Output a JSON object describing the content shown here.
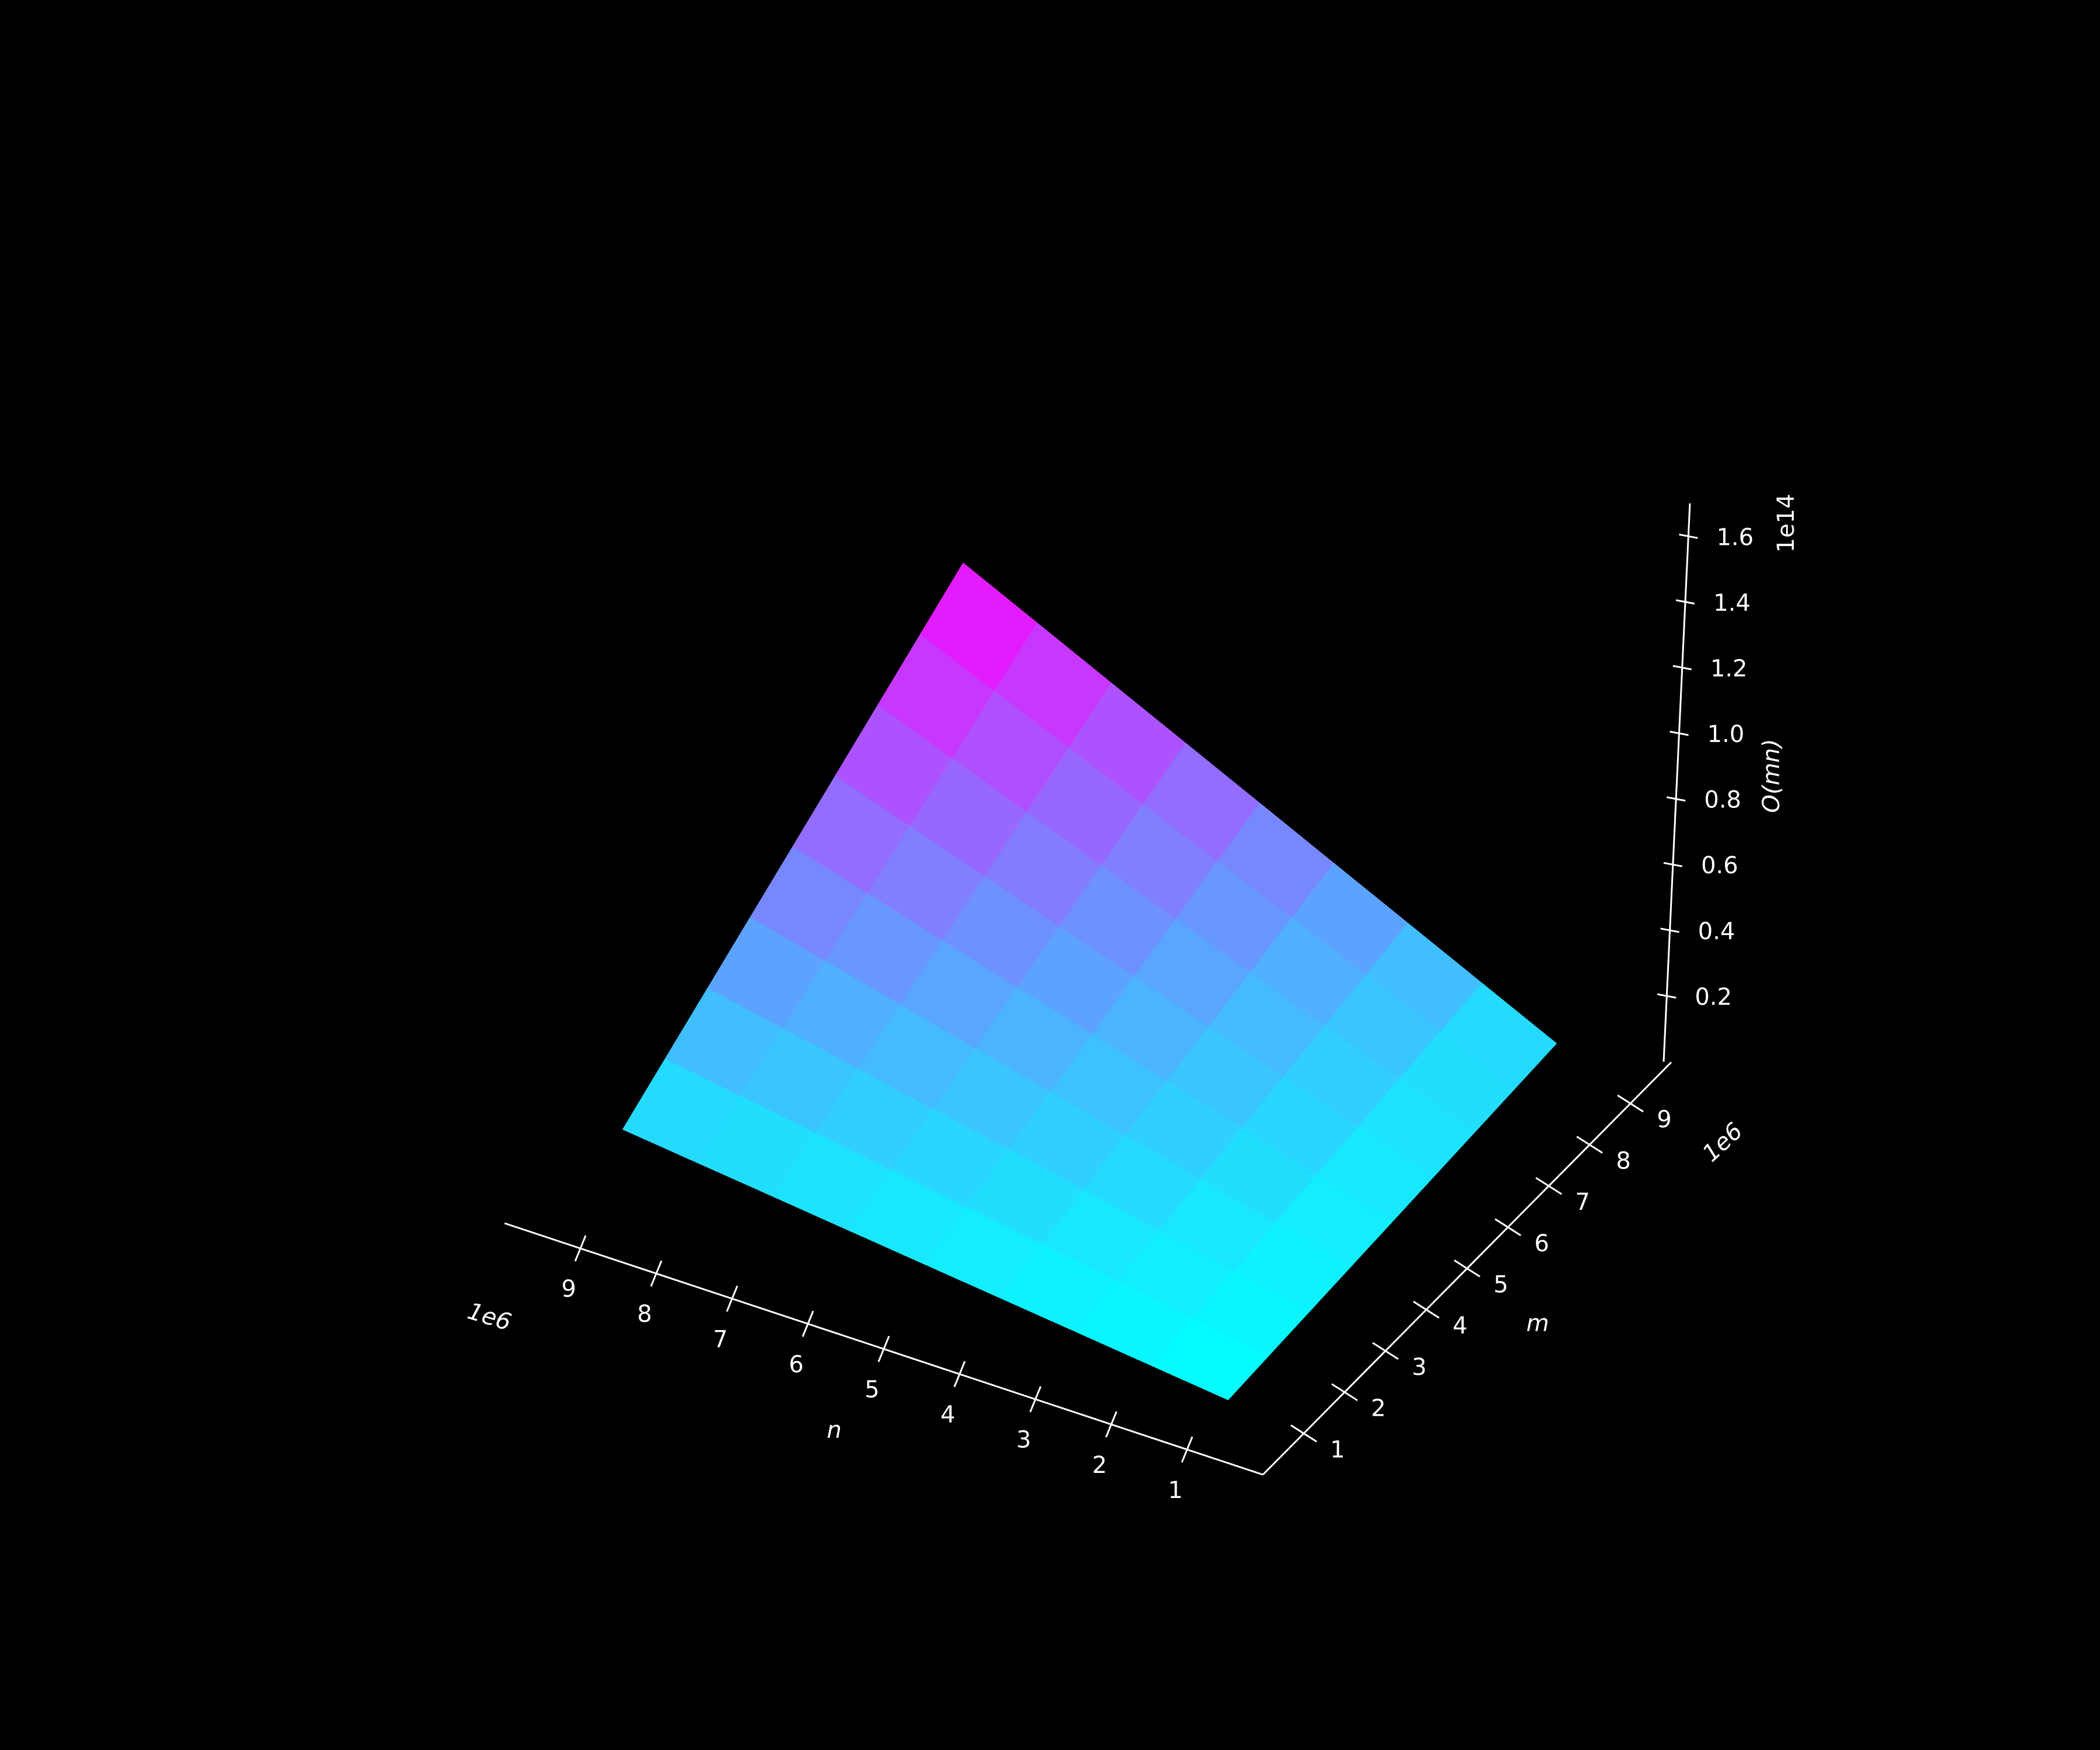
{
  "chart_data": {
    "type": "surface",
    "function": "z = m * n",
    "x": [
      1000000,
      2000000,
      3000000,
      4000000,
      5000000,
      6000000,
      7000000,
      8000000,
      9000000
    ],
    "y": [
      1000000,
      2000000,
      3000000,
      4000000,
      5000000,
      6000000,
      7000000,
      8000000,
      9000000
    ],
    "xlabel": "n",
    "ylabel": "m",
    "zlabel": "O(mn)",
    "x_offset_label": "1e6",
    "y_offset_label": "1e6",
    "z_offset_label": "1e14",
    "x_ticks": [
      "1",
      "2",
      "3",
      "4",
      "5",
      "6",
      "7",
      "8",
      "9"
    ],
    "y_ticks": [
      "1",
      "2",
      "3",
      "4",
      "5",
      "6",
      "7",
      "8",
      "9"
    ],
    "z_ticks": [
      "0.2",
      "0.4",
      "0.6",
      "0.8",
      "1.0",
      "1.2",
      "1.4",
      "1.6"
    ],
    "xlim": [
      0,
      10000000
    ],
    "ylim": [
      0,
      10000000
    ],
    "zlim": [
      0,
      170000000000000
    ],
    "colormap": "cool",
    "colors": {
      "low": "#00ffff",
      "high": "#ff00ff",
      "background": "#000000",
      "axes": "#ffffff"
    },
    "grid": false
  }
}
